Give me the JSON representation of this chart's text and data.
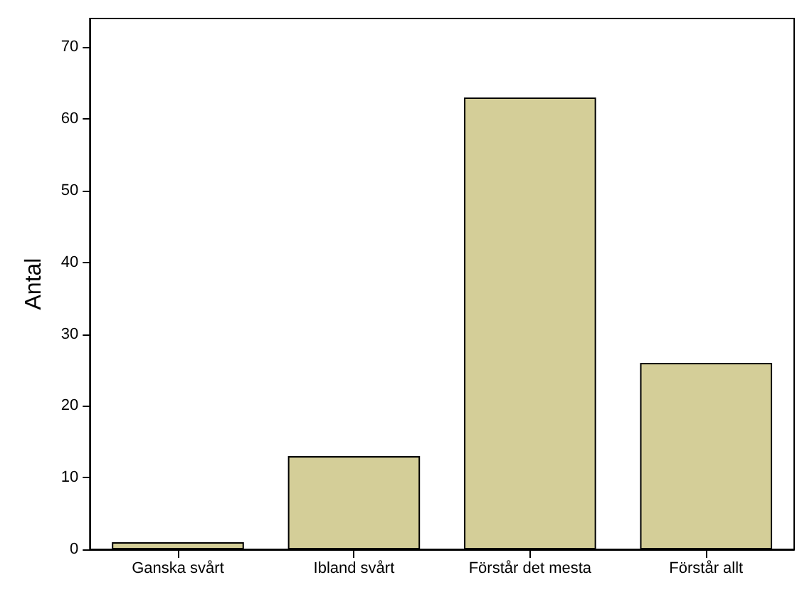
{
  "chart_data": {
    "type": "bar",
    "ylabel": "Antal",
    "categories": [
      "Ganska svårt",
      "Ibland svårt",
      "Förstår det mesta",
      "Förstår allt"
    ],
    "values": [
      1,
      13,
      63,
      26
    ],
    "color": "#d4ce98",
    "ylim": [
      0,
      74
    ],
    "yticks": [
      0,
      10,
      20,
      30,
      40,
      50,
      60,
      70
    ],
    "grid": false
  }
}
